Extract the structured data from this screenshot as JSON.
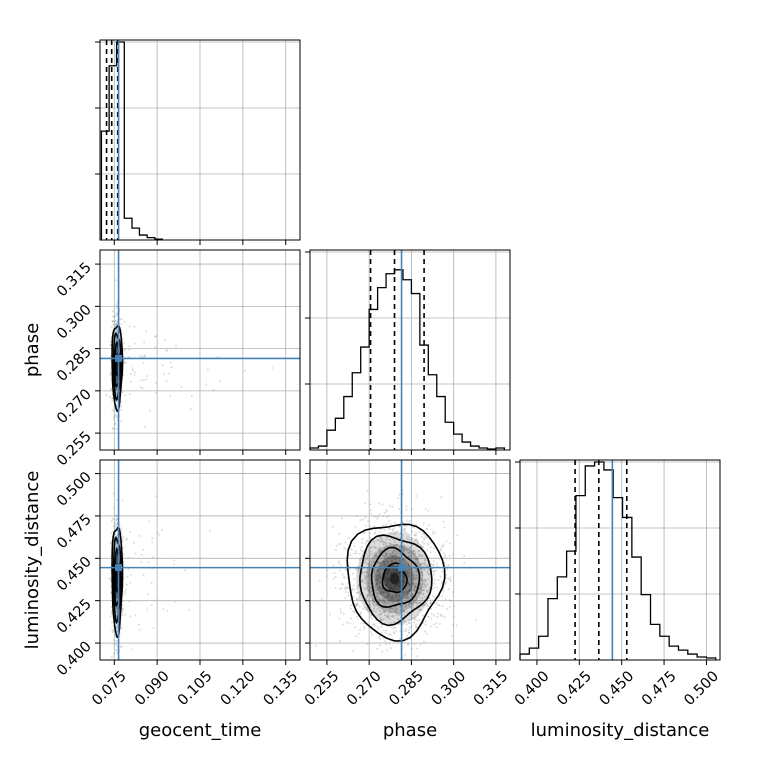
{
  "chart_data": {
    "type": "corner",
    "parameters": [
      "geocent_time",
      "phase",
      "luminosity_distance"
    ],
    "xlabels": [
      "geocent_time",
      "phase",
      "luminosity_distance"
    ],
    "ylabels": [
      "",
      "phase",
      "luminosity_distance"
    ],
    "ranges": {
      "geocent_time": [
        0.07,
        0.14
      ],
      "phase": [
        0.249,
        0.32
      ],
      "luminosity_distance": [
        0.39,
        0.508
      ]
    },
    "ticks": {
      "geocent_time": [
        "0.075",
        "0.090",
        "0.105",
        "0.120",
        "0.135"
      ],
      "phase": [
        "0.255",
        "0.270",
        "0.285",
        "0.300",
        "0.315"
      ],
      "luminosity_distance": [
        "0.400",
        "0.425",
        "0.450",
        "0.475",
        "0.500"
      ]
    },
    "truths": {
      "geocent_time": 0.0765,
      "phase": 0.2815,
      "luminosity_distance": 0.4445
    },
    "quantiles": {
      "geocent_time": [
        0.0723,
        0.0741,
        0.0762
      ],
      "phase": [
        0.2705,
        0.279,
        0.2895
      ],
      "luminosity_distance": [
        0.4225,
        0.4365,
        0.453
      ]
    },
    "marginals": {
      "geocent_time": {
        "bin_edges": [
          0.0705,
          0.0732,
          0.0758,
          0.0785,
          0.0812,
          0.0838,
          0.0865,
          0.0892,
          0.0918
        ],
        "counts": [
          0.55,
          0.88,
          1.0,
          0.11,
          0.06,
          0.025,
          0.012,
          0.004
        ]
      },
      "phase": {
        "bin_edges": [
          0.249,
          0.252,
          0.255,
          0.258,
          0.261,
          0.264,
          0.267,
          0.27,
          0.273,
          0.276,
          0.279,
          0.282,
          0.285,
          0.288,
          0.291,
          0.294,
          0.297,
          0.3,
          0.303,
          0.306,
          0.309,
          0.312,
          0.315,
          0.318
        ],
        "counts": [
          0.01,
          0.02,
          0.1,
          0.16,
          0.27,
          0.39,
          0.52,
          0.71,
          0.82,
          0.89,
          0.91,
          0.86,
          0.79,
          0.53,
          0.38,
          0.27,
          0.14,
          0.08,
          0.04,
          0.02,
          0.01,
          0.005,
          0.01
        ]
      },
      "luminosity_distance": {
        "bin_edges": [
          0.39,
          0.3955,
          0.401,
          0.4065,
          0.412,
          0.4175,
          0.423,
          0.4285,
          0.434,
          0.4395,
          0.445,
          0.4505,
          0.456,
          0.4615,
          0.467,
          0.4725,
          0.478,
          0.4835,
          0.489,
          0.4945,
          0.5,
          0.5055
        ],
        "counts": [
          0.03,
          0.06,
          0.12,
          0.31,
          0.42,
          0.55,
          0.83,
          0.98,
          1.0,
          0.96,
          0.82,
          0.72,
          0.52,
          0.33,
          0.18,
          0.12,
          0.07,
          0.05,
          0.03,
          0.015,
          0.01
        ]
      }
    },
    "joint_2d": [
      {
        "x": "geocent_time",
        "y": "phase",
        "center": [
          0.076,
          0.279
        ],
        "sigma": [
          0.0009,
          0.0075
        ]
      },
      {
        "x": "geocent_time",
        "y": "luminosity_distance",
        "center": [
          0.076,
          0.438
        ],
        "sigma": [
          0.0009,
          0.016
        ]
      },
      {
        "x": "phase",
        "y": "luminosity_distance",
        "center": [
          0.279,
          0.438
        ],
        "sigma": [
          0.0085,
          0.017
        ]
      }
    ],
    "colors": {
      "truth": "#4682b4",
      "grid": "#b0b0b0",
      "samples": "#9a9a9a",
      "density": "#000000"
    },
    "grid": true
  }
}
